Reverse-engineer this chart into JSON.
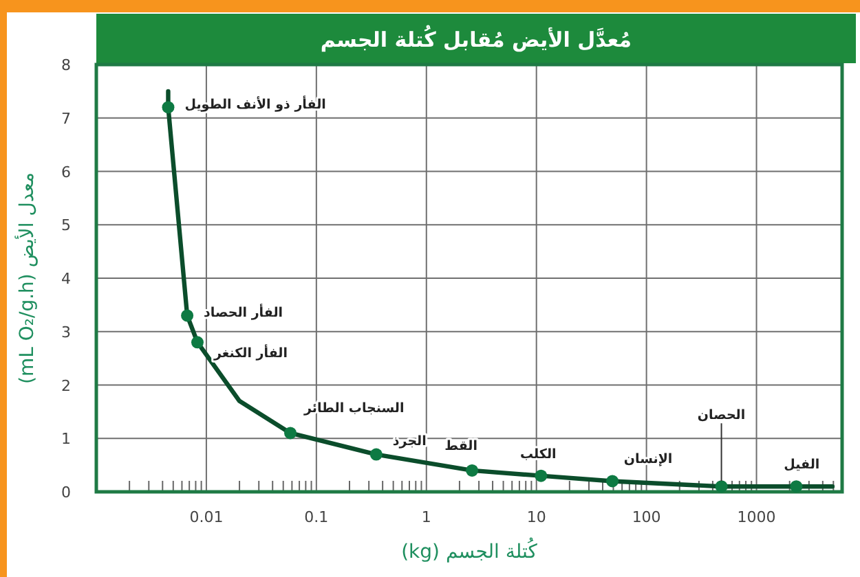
{
  "chart_data": {
    "type": "line",
    "title": "مُعدَّل الأيض مُقابل كُتلة الجسم",
    "xlabel": "كُتلة الجسم (kg)",
    "ylabel": "معدل الأيض (mL O₂/g.h)",
    "log": "x",
    "grid": true,
    "xlim": [
      0.001,
      6000
    ],
    "xticks": [
      0.01,
      0.1,
      1,
      10,
      100,
      1000
    ],
    "ylim": [
      0,
      8
    ],
    "yticks": [
      0,
      1,
      2,
      3,
      4,
      5,
      6,
      7,
      8
    ],
    "series": [
      {
        "color": "#0b4d2b",
        "x": [
          0.0045,
          0.0045,
          0.0067,
          0.0083,
          0.02,
          0.058,
          0.35,
          2.6,
          11,
          49,
          480,
          2300,
          4900
        ],
        "values": [
          7.5,
          7.2,
          3.3,
          2.8,
          1.7,
          1.1,
          0.7,
          0.4,
          0.3,
          0.2,
          0.1,
          0.1,
          0.1
        ]
      },
      {
        "type": "scatter",
        "marker": "circle",
        "color": "#0e7a43",
        "x": [
          0.0045,
          0.0067,
          0.0083,
          0.058,
          0.35,
          2.6,
          11,
          49,
          480,
          2300
        ],
        "values": [
          7.2,
          3.3,
          2.8,
          1.1,
          0.7,
          0.4,
          0.3,
          0.2,
          0.1,
          0.1
        ]
      }
    ],
    "annotations": [
      {
        "text": "الفأر ذو الأنف الطويل",
        "x": 0.0045,
        "y": 7.2
      },
      {
        "text": "الفأر الحصاد",
        "x": 0.0067,
        "y": 3.3
      },
      {
        "text": "الفأر الكنغر",
        "x": 0.0083,
        "y": 2.8
      },
      {
        "text": "السنجاب الطائر",
        "x": 0.058,
        "y": 1.1
      },
      {
        "text": "الجرذ",
        "x": 0.35,
        "y": 0.7
      },
      {
        "text": "القط",
        "x": 2.6,
        "y": 0.4
      },
      {
        "text": "الكلب",
        "x": 11,
        "y": 0.3
      },
      {
        "text": "الإنسان",
        "x": 49,
        "y": 0.2
      },
      {
        "text": "الحصان",
        "x": 480,
        "y": 0.1
      },
      {
        "text": "الفيل",
        "x": 2300,
        "y": 0.1
      }
    ]
  }
}
